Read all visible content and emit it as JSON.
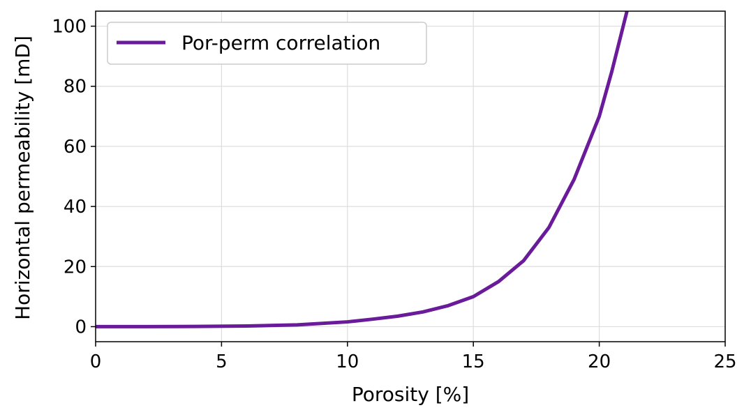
{
  "chart_data": {
    "type": "line",
    "title": "",
    "xlabel": "Porosity [%]",
    "ylabel": "Horizontal permeability [mD]",
    "xlim": [
      0,
      25
    ],
    "ylim": [
      -5,
      105
    ],
    "x_ticks": [
      0,
      5,
      10,
      15,
      20,
      25
    ],
    "y_ticks": [
      0,
      20,
      40,
      60,
      80,
      100
    ],
    "x_tick_labels": [
      "0",
      "5",
      "10",
      "15",
      "20",
      "25"
    ],
    "y_tick_labels": [
      "0",
      "20",
      "40",
      "60",
      "80",
      "100"
    ],
    "grid": true,
    "legend_position": "top-left",
    "series": [
      {
        "name": "Por-perm correlation",
        "color": "#6a1b9a",
        "x": [
          0,
          2,
          4,
          6,
          8,
          10,
          11,
          12,
          13,
          14,
          15,
          16,
          17,
          18,
          19,
          20,
          20.5,
          21.1
        ],
        "y": [
          0.01,
          0.03,
          0.08,
          0.22,
          0.59,
          1.6,
          2.5,
          3.5,
          4.9,
          7.0,
          10.0,
          15.0,
          22.0,
          33.0,
          49.0,
          70.0,
          85.0,
          105.0
        ]
      }
    ]
  }
}
